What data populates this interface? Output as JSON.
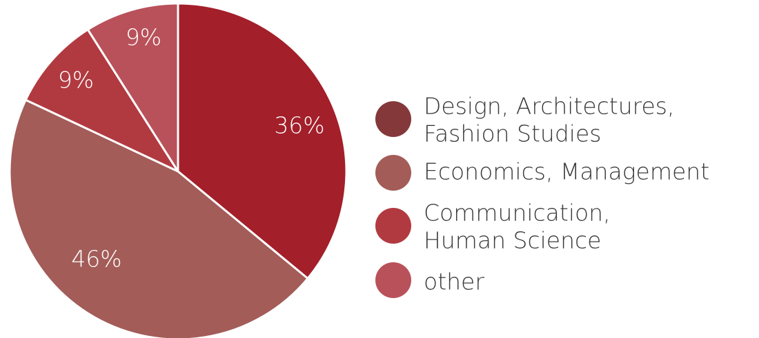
{
  "chart_data": {
    "type": "pie",
    "categories": [
      "Design, Architectures, Fashion Studies",
      "Economics, Management",
      "Communication, Human Science",
      "other"
    ],
    "values": [
      36,
      46,
      9,
      9
    ],
    "slice_labels": [
      "36%",
      "46%",
      "9%",
      "9%"
    ],
    "slice_colors": [
      "#a31f2a",
      "#a35c58",
      "#b13a40",
      "#b9515a"
    ],
    "legend": {
      "placement": "right",
      "entries": [
        {
          "lines": [
            "Design, Architectures,",
            "Fashion Studies"
          ],
          "color": "#84383a"
        },
        {
          "lines": [
            "Economics, Management"
          ],
          "color": "#a35c58"
        },
        {
          "lines": [
            "Communication,",
            "Human Science"
          ],
          "color": "#b13a40"
        },
        {
          "lines": [
            "other"
          ],
          "color": "#b9515a"
        }
      ]
    },
    "start": "top",
    "direction": "clockwise",
    "slice_border_color": "#ffffff"
  }
}
